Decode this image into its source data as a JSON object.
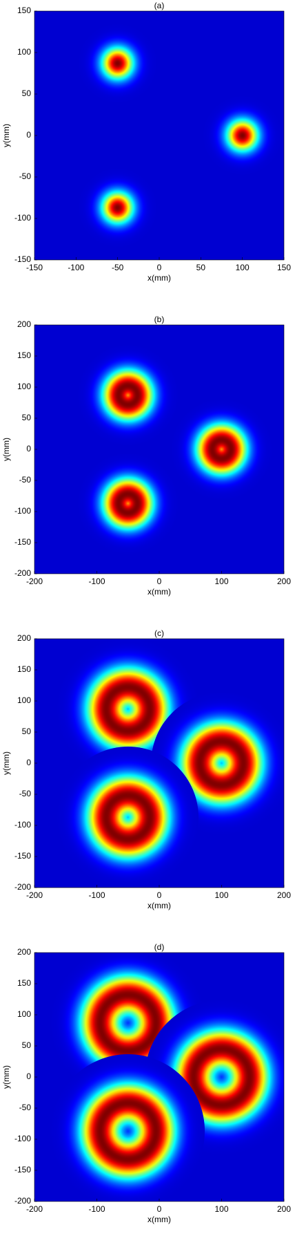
{
  "chart_data": [
    {
      "type": "heatmap",
      "title": "(a)",
      "x_label": "x(mm)",
      "y_label": "y(mm)",
      "xlim": [
        -150,
        150
      ],
      "ylim": [
        -150,
        150
      ],
      "xticks": [
        -150,
        -100,
        -50,
        0,
        50,
        100,
        150
      ],
      "yticks": [
        -150,
        -100,
        -50,
        0,
        50,
        100,
        150
      ],
      "spots": [
        {
          "x": -50,
          "y": 87
        },
        {
          "x": 100,
          "y": 0
        },
        {
          "x": -50,
          "y": -87
        }
      ],
      "ring": 0,
      "width": 18
    },
    {
      "type": "heatmap",
      "title": "(b)",
      "x_label": "x(mm)",
      "y_label": "y(mm)",
      "xlim": [
        -200,
        200
      ],
      "ylim": [
        -200,
        200
      ],
      "xticks": [
        -200,
        -100,
        0,
        100,
        200
      ],
      "yticks": [
        -200,
        -150,
        -100,
        -50,
        0,
        50,
        100,
        150,
        200
      ],
      "spots": [
        {
          "x": -50,
          "y": 87
        },
        {
          "x": 100,
          "y": 0
        },
        {
          "x": -50,
          "y": -87
        }
      ],
      "ring": 15,
      "width": 25
    },
    {
      "type": "heatmap",
      "title": "(c)",
      "x_label": "x(mm)",
      "y_label": "y(mm)",
      "xlim": [
        -200,
        200
      ],
      "ylim": [
        -200,
        200
      ],
      "xticks": [
        -200,
        -100,
        0,
        100,
        200
      ],
      "yticks": [
        -200,
        -150,
        -100,
        -50,
        0,
        50,
        100,
        150,
        200
      ],
      "spots": [
        {
          "x": -50,
          "y": 87
        },
        {
          "x": 100,
          "y": 0
        },
        {
          "x": -50,
          "y": -87
        }
      ],
      "ring": 35,
      "width": 30
    },
    {
      "type": "heatmap",
      "title": "(d)",
      "x_label": "x(mm)",
      "y_label": "y(mm)",
      "xlim": [
        -200,
        200
      ],
      "ylim": [
        -200,
        200
      ],
      "xticks": [
        -200,
        -100,
        0,
        100,
        200
      ],
      "yticks": [
        -200,
        -150,
        -100,
        -50,
        0,
        50,
        100,
        150,
        200
      ],
      "spots": [
        {
          "x": -50,
          "y": 87
        },
        {
          "x": 100,
          "y": 0
        },
        {
          "x": -50,
          "y": -87
        }
      ],
      "ring": 45,
      "width": 30
    }
  ]
}
